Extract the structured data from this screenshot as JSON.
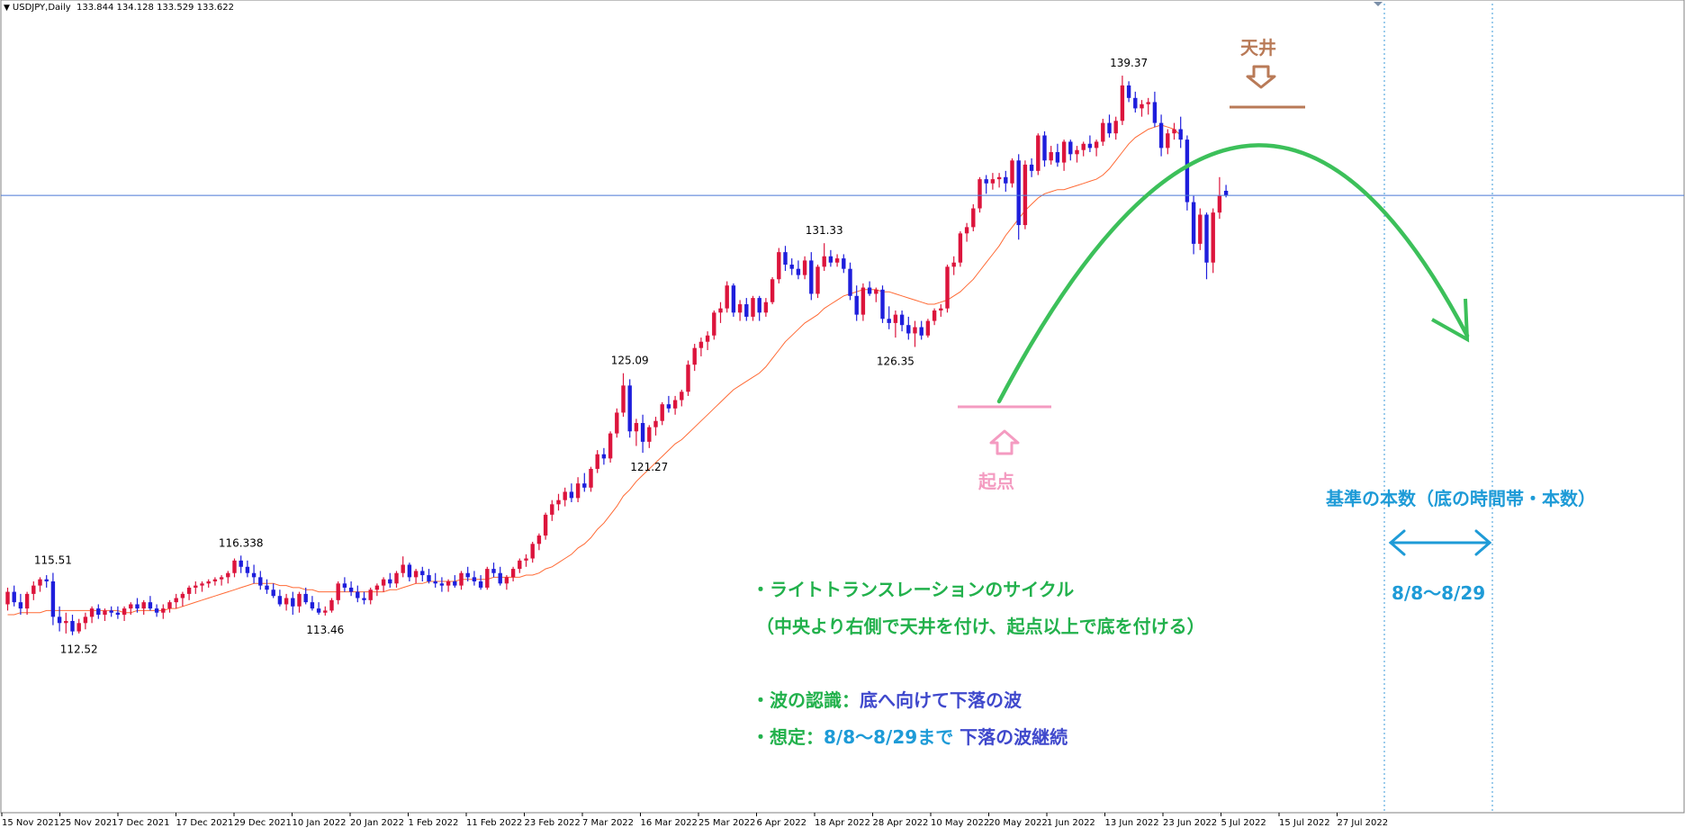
{
  "header": {
    "symbol": "USDJPY,Daily",
    "ohlc": "133.844 134.128 133.529 133.622"
  },
  "colors": {
    "bull": "#dc143c",
    "bear": "#1e1edc",
    "ma": "#ff6a35",
    "arc": "#3cc05a",
    "hline": "#4a78d8",
    "vline": "#3a9ad9",
    "pink": "#f49bc1",
    "brown": "#b97a57",
    "cyan": "#1e9bd7"
  },
  "chart_data": {
    "type": "candlestick",
    "x_ticks": [
      "15 Nov 2021",
      "25 Nov 2021",
      "7 Dec 2021",
      "17 Dec 2021",
      "29 Dec 2021",
      "10 Jan 2022",
      "20 Jan 2022",
      "1 Feb 2022",
      "11 Feb 2022",
      "23 Feb 2022",
      "7 Mar 2022",
      "16 Mar 2022",
      "25 Mar 2022",
      "6 Apr 2022",
      "18 Apr 2022",
      "28 Apr 2022",
      "10 May 2022",
      "20 May 2022",
      "1 Jun 2022",
      "13 Jun 2022",
      "23 Jun 2022",
      "5 Jul 2022",
      "15 Jul 2022",
      "27 Jul 2022"
    ],
    "price_ylim": [
      104.0,
      143.0
    ],
    "current_price": 133.622,
    "price_labels": [
      {
        "text": "115.51",
        "value": 115.51,
        "bar": 7
      },
      {
        "text": "112.52",
        "value": 112.52,
        "bar": 11
      },
      {
        "text": "116.338",
        "value": 116.338,
        "bar": 36
      },
      {
        "text": "113.46",
        "value": 113.46,
        "bar": 49
      },
      {
        "text": "125.09",
        "value": 125.09,
        "bar": 96
      },
      {
        "text": "121.27",
        "value": 121.27,
        "bar": 99
      },
      {
        "text": "131.33",
        "value": 131.33,
        "bar": 126
      },
      {
        "text": "126.35",
        "value": 126.35,
        "bar": 137
      },
      {
        "text": "139.37",
        "value": 139.37,
        "bar": 173
      }
    ],
    "ohlc": [
      [
        114.0,
        114.8,
        113.7,
        114.6
      ],
      [
        114.6,
        114.9,
        113.9,
        114.1
      ],
      [
        114.1,
        114.5,
        113.5,
        113.8
      ],
      [
        113.8,
        114.6,
        113.5,
        114.5
      ],
      [
        114.5,
        115.1,
        114.2,
        114.9
      ],
      [
        114.9,
        115.3,
        114.6,
        115.2
      ],
      [
        115.2,
        115.4,
        114.8,
        115.1
      ],
      [
        115.1,
        115.51,
        113.0,
        113.4
      ],
      [
        113.4,
        113.9,
        112.7,
        113.1
      ],
      [
        113.1,
        113.6,
        112.6,
        113.2
      ],
      [
        113.2,
        113.5,
        112.52,
        112.7
      ],
      [
        112.7,
        113.3,
        112.6,
        113.1
      ],
      [
        113.1,
        113.6,
        112.8,
        113.4
      ],
      [
        113.4,
        113.9,
        113.1,
        113.8
      ],
      [
        113.8,
        114.0,
        113.3,
        113.5
      ],
      [
        113.5,
        113.8,
        113.2,
        113.7
      ],
      [
        113.7,
        113.9,
        113.4,
        113.6
      ],
      [
        113.6,
        113.9,
        113.3,
        113.5
      ],
      [
        113.5,
        113.9,
        113.2,
        113.8
      ],
      [
        113.8,
        114.1,
        113.5,
        114.0
      ],
      [
        114.0,
        114.3,
        113.6,
        113.8
      ],
      [
        113.8,
        114.2,
        113.5,
        114.1
      ],
      [
        114.1,
        114.4,
        113.7,
        113.8
      ],
      [
        113.8,
        114.0,
        113.4,
        113.6
      ],
      [
        113.6,
        114.0,
        113.3,
        113.8
      ],
      [
        113.8,
        114.2,
        113.6,
        114.1
      ],
      [
        114.1,
        114.5,
        113.8,
        114.3
      ],
      [
        114.3,
        114.6,
        113.9,
        114.5
      ],
      [
        114.5,
        114.9,
        114.2,
        114.8
      ],
      [
        114.8,
        115.1,
        114.5,
        114.9
      ],
      [
        114.9,
        115.1,
        114.6,
        115.0
      ],
      [
        115.0,
        115.2,
        114.8,
        115.1
      ],
      [
        115.1,
        115.3,
        114.9,
        115.2
      ],
      [
        115.2,
        115.4,
        114.9,
        115.3
      ],
      [
        115.3,
        115.6,
        115.0,
        115.5
      ],
      [
        115.5,
        116.2,
        115.3,
        116.1
      ],
      [
        116.1,
        116.338,
        115.5,
        115.8
      ],
      [
        115.8,
        116.1,
        115.3,
        115.5
      ],
      [
        115.5,
        115.9,
        115.0,
        115.3
      ],
      [
        115.3,
        115.6,
        114.7,
        114.9
      ],
      [
        114.9,
        115.2,
        114.5,
        114.7
      ],
      [
        114.7,
        115.0,
        114.3,
        114.4
      ],
      [
        114.4,
        114.7,
        113.9,
        114.0
      ],
      [
        114.0,
        114.5,
        113.7,
        114.3
      ],
      [
        114.3,
        114.6,
        113.5,
        113.9
      ],
      [
        113.9,
        114.6,
        113.6,
        114.5
      ],
      [
        114.5,
        114.8,
        114.0,
        114.1
      ],
      [
        114.1,
        114.4,
        113.7,
        113.8
      ],
      [
        113.8,
        114.1,
        113.5,
        113.6
      ],
      [
        113.6,
        113.9,
        113.46,
        113.7
      ],
      [
        113.7,
        114.3,
        113.6,
        114.2
      ],
      [
        114.2,
        115.1,
        114.0,
        115.0
      ],
      [
        115.0,
        115.3,
        114.6,
        114.8
      ],
      [
        114.8,
        115.1,
        114.4,
        114.6
      ],
      [
        114.6,
        114.9,
        114.1,
        114.3
      ],
      [
        114.3,
        114.6,
        114.0,
        114.2
      ],
      [
        114.2,
        114.8,
        114.0,
        114.7
      ],
      [
        114.7,
        115.0,
        114.4,
        114.9
      ],
      [
        114.9,
        115.3,
        114.6,
        115.2
      ],
      [
        115.2,
        115.5,
        114.8,
        115.0
      ],
      [
        115.0,
        115.6,
        114.8,
        115.5
      ],
      [
        115.5,
        116.3,
        115.3,
        115.9
      ],
      [
        115.9,
        116.0,
        115.1,
        115.3
      ],
      [
        115.3,
        115.7,
        115.0,
        115.6
      ],
      [
        115.6,
        115.8,
        115.1,
        115.4
      ],
      [
        115.4,
        115.7,
        115.0,
        115.1
      ],
      [
        115.1,
        115.5,
        114.8,
        115.0
      ],
      [
        115.0,
        115.3,
        114.6,
        114.9
      ],
      [
        114.9,
        115.2,
        114.6,
        115.1
      ],
      [
        115.1,
        115.4,
        114.8,
        114.9
      ],
      [
        114.9,
        115.6,
        114.7,
        115.5
      ],
      [
        115.5,
        115.8,
        115.1,
        115.3
      ],
      [
        115.3,
        115.6,
        114.9,
        115.1
      ],
      [
        115.1,
        115.4,
        114.7,
        114.8
      ],
      [
        114.8,
        115.8,
        114.7,
        115.7
      ],
      [
        115.7,
        116.0,
        115.3,
        115.5
      ],
      [
        115.5,
        115.8,
        114.9,
        115.0
      ],
      [
        115.0,
        115.4,
        114.7,
        115.3
      ],
      [
        115.3,
        115.8,
        115.1,
        115.7
      ],
      [
        115.7,
        116.2,
        115.5,
        116.1
      ],
      [
        116.1,
        116.4,
        115.8,
        116.2
      ],
      [
        116.2,
        117.0,
        116.0,
        116.9
      ],
      [
        116.9,
        117.4,
        116.6,
        117.3
      ],
      [
        117.3,
        118.4,
        117.1,
        118.3
      ],
      [
        118.3,
        119.0,
        118.0,
        118.8
      ],
      [
        118.8,
        119.3,
        118.5,
        119.0
      ],
      [
        119.0,
        119.6,
        118.7,
        119.4
      ],
      [
        119.4,
        119.8,
        118.9,
        119.1
      ],
      [
        119.1,
        120.1,
        118.9,
        119.8
      ],
      [
        119.8,
        120.3,
        119.4,
        119.6
      ],
      [
        119.6,
        120.6,
        119.4,
        120.5
      ],
      [
        120.5,
        121.4,
        120.3,
        121.2
      ],
      [
        121.2,
        121.5,
        120.7,
        121.0
      ],
      [
        121.0,
        122.3,
        120.8,
        122.2
      ],
      [
        122.2,
        123.4,
        122.0,
        123.2
      ],
      [
        123.2,
        125.09,
        123.0,
        124.5
      ],
      [
        124.5,
        124.8,
        122.0,
        122.3
      ],
      [
        122.3,
        122.9,
        121.6,
        122.7
      ],
      [
        122.7,
        123.1,
        121.27,
        121.8
      ],
      [
        121.8,
        122.6,
        121.5,
        122.5
      ],
      [
        122.5,
        123.0,
        122.1,
        122.8
      ],
      [
        122.8,
        123.7,
        122.6,
        123.6
      ],
      [
        123.6,
        124.0,
        123.2,
        123.4
      ],
      [
        123.4,
        124.0,
        123.1,
        123.8
      ],
      [
        123.8,
        124.3,
        123.5,
        124.2
      ],
      [
        124.2,
        125.7,
        124.0,
        125.5
      ],
      [
        125.5,
        126.5,
        125.2,
        126.3
      ],
      [
        126.3,
        126.8,
        125.9,
        126.6
      ],
      [
        126.6,
        127.1,
        126.2,
        126.9
      ],
      [
        126.9,
        128.1,
        126.7,
        128.0
      ],
      [
        128.0,
        128.5,
        127.5,
        128.2
      ],
      [
        128.2,
        129.5,
        128.0,
        129.3
      ],
      [
        129.3,
        129.4,
        127.8,
        128.0
      ],
      [
        128.0,
        128.6,
        127.6,
        128.4
      ],
      [
        128.4,
        128.7,
        127.6,
        127.8
      ],
      [
        127.8,
        128.8,
        127.6,
        128.7
      ],
      [
        128.7,
        128.8,
        127.6,
        128.0
      ],
      [
        128.0,
        128.7,
        127.8,
        128.5
      ],
      [
        128.5,
        129.7,
        128.4,
        129.6
      ],
      [
        129.6,
        131.1,
        129.4,
        130.9
      ],
      [
        130.9,
        131.2,
        130.0,
        130.3
      ],
      [
        130.3,
        130.6,
        129.8,
        130.1
      ],
      [
        130.1,
        130.5,
        129.6,
        129.8
      ],
      [
        129.8,
        130.7,
        129.6,
        130.5
      ],
      [
        130.5,
        130.9,
        128.6,
        128.9
      ],
      [
        128.9,
        130.3,
        128.7,
        130.2
      ],
      [
        130.2,
        131.33,
        130.0,
        130.7
      ],
      [
        130.7,
        131.0,
        130.2,
        130.4
      ],
      [
        130.4,
        130.8,
        130.2,
        130.6
      ],
      [
        130.6,
        130.8,
        129.9,
        130.1
      ],
      [
        130.1,
        130.4,
        128.6,
        128.8
      ],
      [
        128.8,
        129.3,
        127.6,
        127.9
      ],
      [
        127.9,
        129.4,
        127.6,
        129.2
      ],
      [
        129.2,
        129.5,
        128.8,
        128.9
      ],
      [
        128.9,
        129.2,
        128.5,
        129.1
      ],
      [
        129.1,
        129.3,
        127.5,
        127.7
      ],
      [
        127.7,
        128.3,
        127.2,
        127.5
      ],
      [
        127.5,
        128.1,
        126.8,
        127.9
      ],
      [
        127.9,
        128.1,
        127.1,
        127.4
      ],
      [
        127.4,
        127.8,
        126.7,
        127.0
      ],
      [
        127.0,
        127.6,
        126.35,
        127.3
      ],
      [
        127.3,
        127.6,
        126.7,
        126.9
      ],
      [
        126.9,
        127.7,
        126.8,
        127.6
      ],
      [
        127.6,
        128.2,
        127.4,
        128.1
      ],
      [
        128.1,
        128.4,
        127.8,
        128.2
      ],
      [
        128.2,
        130.3,
        128.0,
        130.2
      ],
      [
        130.2,
        130.7,
        129.8,
        130.4
      ],
      [
        130.4,
        131.9,
        130.2,
        131.8
      ],
      [
        131.8,
        132.3,
        131.4,
        132.1
      ],
      [
        132.1,
        133.2,
        131.9,
        133.0
      ],
      [
        133.0,
        134.5,
        132.8,
        134.4
      ],
      [
        134.4,
        134.6,
        133.7,
        134.2
      ],
      [
        134.2,
        134.7,
        133.9,
        134.4
      ],
      [
        134.4,
        134.7,
        134.0,
        134.5
      ],
      [
        134.5,
        134.8,
        133.8,
        134.2
      ],
      [
        134.2,
        135.4,
        134.0,
        135.3
      ],
      [
        135.3,
        135.6,
        131.5,
        132.2
      ],
      [
        132.2,
        135.3,
        132.0,
        135.1
      ],
      [
        135.1,
        135.4,
        134.5,
        134.8
      ],
      [
        134.8,
        136.6,
        134.6,
        136.5
      ],
      [
        136.5,
        136.7,
        135.0,
        135.3
      ],
      [
        135.3,
        136.0,
        135.1,
        135.7
      ],
      [
        135.7,
        136.1,
        135.0,
        135.2
      ],
      [
        135.2,
        136.3,
        134.8,
        136.2
      ],
      [
        136.2,
        136.3,
        135.3,
        135.6
      ],
      [
        135.6,
        136.0,
        135.2,
        135.8
      ],
      [
        135.8,
        136.2,
        135.5,
        136.1
      ],
      [
        136.1,
        136.5,
        135.7,
        135.9
      ],
      [
        135.9,
        136.3,
        135.5,
        136.2
      ],
      [
        136.2,
        137.3,
        136.0,
        137.1
      ],
      [
        137.1,
        137.5,
        136.4,
        136.6
      ],
      [
        136.6,
        137.4,
        136.3,
        137.2
      ],
      [
        137.2,
        139.37,
        137.0,
        138.9
      ],
      [
        138.9,
        139.1,
        138.1,
        138.3
      ],
      [
        138.3,
        138.6,
        137.6,
        137.8
      ],
      [
        137.8,
        138.2,
        137.4,
        138.0
      ],
      [
        138.0,
        138.3,
        137.5,
        138.1
      ],
      [
        138.1,
        138.6,
        136.9,
        137.1
      ],
      [
        137.1,
        137.5,
        135.5,
        135.9
      ],
      [
        135.9,
        136.8,
        135.6,
        136.6
      ],
      [
        136.6,
        137.1,
        136.3,
        136.8
      ],
      [
        136.8,
        137.4,
        135.9,
        136.3
      ],
      [
        136.3,
        136.5,
        132.9,
        133.3
      ],
      [
        133.3,
        133.6,
        130.8,
        131.3
      ],
      [
        131.3,
        133.0,
        131.0,
        132.7
      ],
      [
        132.7,
        132.8,
        129.6,
        130.4
      ],
      [
        130.4,
        133.0,
        129.9,
        132.8
      ],
      [
        132.8,
        134.5,
        132.5,
        133.6
      ],
      [
        133.844,
        134.128,
        133.529,
        133.622
      ]
    ],
    "ma": [
      113.5,
      113.5,
      113.6,
      113.6,
      113.6,
      113.6,
      113.7,
      113.7,
      113.7,
      113.7,
      113.7,
      113.7,
      113.7,
      113.7,
      113.7,
      113.7,
      113.7,
      113.7,
      113.6,
      113.6,
      113.7,
      113.7,
      113.7,
      113.7,
      113.7,
      113.8,
      113.8,
      113.9,
      114.0,
      114.1,
      114.2,
      114.3,
      114.4,
      114.5,
      114.6,
      114.7,
      114.8,
      114.9,
      115.0,
      115.0,
      115.0,
      115.0,
      114.9,
      114.9,
      114.8,
      114.8,
      114.7,
      114.7,
      114.6,
      114.6,
      114.6,
      114.6,
      114.6,
      114.6,
      114.6,
      114.6,
      114.6,
      114.6,
      114.6,
      114.7,
      114.7,
      114.8,
      114.9,
      115.0,
      115.0,
      115.1,
      115.1,
      115.1,
      115.1,
      115.1,
      115.2,
      115.2,
      115.2,
      115.2,
      115.2,
      115.3,
      115.3,
      115.3,
      115.3,
      115.3,
      115.4,
      115.4,
      115.5,
      115.7,
      115.8,
      116.0,
      116.2,
      116.4,
      116.7,
      116.9,
      117.2,
      117.6,
      117.9,
      118.3,
      118.7,
      119.2,
      119.5,
      119.9,
      120.2,
      120.5,
      120.8,
      121.1,
      121.4,
      121.7,
      121.9,
      122.2,
      122.5,
      122.8,
      123.1,
      123.4,
      123.7,
      124.0,
      124.3,
      124.5,
      124.7,
      124.9,
      125.1,
      125.4,
      125.8,
      126.2,
      126.6,
      126.9,
      127.2,
      127.5,
      127.7,
      127.9,
      128.2,
      128.4,
      128.6,
      128.8,
      128.9,
      129.0,
      129.1,
      129.1,
      129.1,
      129.0,
      129.0,
      128.9,
      128.8,
      128.7,
      128.6,
      128.5,
      128.4,
      128.4,
      128.5,
      128.6,
      128.8,
      129.0,
      129.3,
      129.6,
      130.0,
      130.4,
      130.8,
      131.2,
      131.7,
      132.1,
      132.5,
      132.9,
      133.2,
      133.5,
      133.7,
      133.8,
      133.9,
      133.9,
      134.0,
      134.1,
      134.2,
      134.3,
      134.4,
      134.6,
      134.9,
      135.3,
      135.7,
      136.1,
      136.4,
      136.6,
      136.8,
      136.9,
      137.0,
      136.9,
      136.8,
      136.5
    ]
  },
  "annotations": {
    "tenjou": "天井",
    "kiten": "起点",
    "line1": "・ライトトランスレーションのサイクル",
    "line2": "（中央より右側で天井を付け、起点以上で底を付ける）",
    "line3_label": "・波の認識：",
    "line3_value": "底へ向けて下落の波",
    "line4_label": "・想定：",
    "line4_value": "8/8〜8/29まで",
    "line4_tail": "下落の波継続",
    "kijun": "基準の本数（底の時間帯・本数）",
    "range": "8/8〜8/29"
  }
}
